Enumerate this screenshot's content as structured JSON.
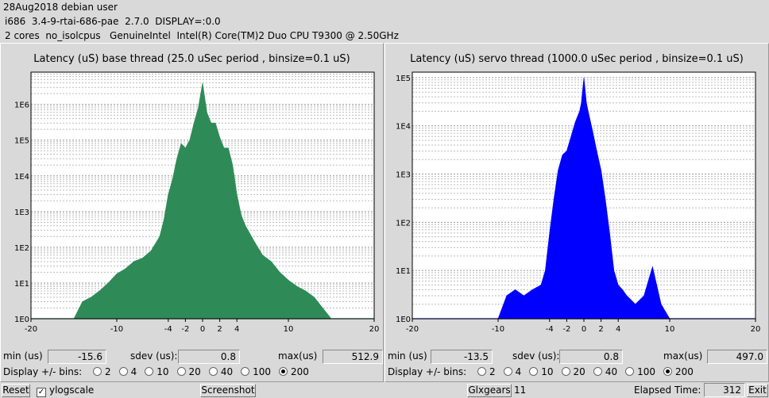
{
  "header": {
    "line1": "28Aug2018 debian user",
    "line2": "i686  3.4-9-rtai-686-pae  2.7.0  DISPLAY=:0.0",
    "line3": "2 cores  no_isolcpus   GenuineIntel  Intel(R) Core(TM)2 Duo CPU T9300 @ 2.50GHz"
  },
  "base": {
    "title": "Latency (uS) base thread (25.0 uSec period , binsize=0.1 uS)",
    "min_label": "min (us)",
    "min_value": "-15.6",
    "sdev_label": "sdev (us):",
    "sdev_value": "0.8",
    "max_label": "max(us)",
    "max_value": "512.9",
    "bins_label": "Display +/- bins:",
    "bin_options": [
      "2",
      "4",
      "10",
      "20",
      "40",
      "100",
      "200"
    ],
    "bin_selected": "200"
  },
  "servo": {
    "title": "Latency (uS) servo thread (1000.0 uSec period , binsize=0.1 uS)",
    "min_label": "min (us)",
    "min_value": "-13.5",
    "sdev_label": "sdev (us):",
    "sdev_value": "0.8",
    "max_label": "max(us)",
    "max_value": "497.0",
    "bins_label": "Display +/- bins:",
    "bin_options": [
      "2",
      "4",
      "10",
      "20",
      "40",
      "100",
      "200"
    ],
    "bin_selected": "200"
  },
  "footer": {
    "reset_label": "Reset",
    "ylog_label": "ylogscale",
    "ylog_checked": true,
    "screenshot_label": "Screenshot",
    "glxgears_label": "Glxgears",
    "glxgears_count": "11",
    "elapsed_label": "Elapsed Time:",
    "elapsed_value": "312",
    "exit_label": "Exit"
  },
  "colors": {
    "base_fill": "#2e8b57",
    "servo_fill": "#0000ff"
  },
  "chart_data": [
    {
      "type": "area",
      "name": "base",
      "title": "Latency (uS) base thread (25.0 uSec period , binsize=0.1 uS)",
      "y_scale": "log",
      "y_tick_labels": [
        "1E0",
        "1E1",
        "1E2",
        "1E3",
        "1E4",
        "1E5",
        "1E6"
      ],
      "x_tick_labels": [
        "-20",
        "-10",
        "-4",
        "-2",
        "0",
        "2",
        "4",
        "10",
        "20"
      ],
      "xlim": [
        -20,
        20
      ],
      "ylim": [
        1,
        8000000
      ],
      "x": [
        -20,
        -15,
        -14,
        -13,
        -12,
        -11,
        -10,
        -9,
        -8,
        -7,
        -6,
        -5,
        -4.5,
        -4,
        -3.5,
        -3,
        -2.5,
        -2,
        -1.5,
        -1,
        -0.5,
        0,
        0.5,
        1,
        1.5,
        2,
        2.5,
        3,
        3.5,
        4,
        4.5,
        5,
        6,
        7,
        8,
        9,
        10,
        11,
        12,
        13,
        14,
        15,
        20
      ],
      "values": [
        0,
        0,
        3,
        4,
        6,
        10,
        18,
        25,
        40,
        50,
        80,
        200,
        600,
        3000,
        8000,
        30000,
        80000,
        60000,
        100000,
        300000,
        800000,
        4000000,
        600000,
        300000,
        300000,
        120000,
        60000,
        60000,
        20000,
        3000,
        800,
        400,
        150,
        60,
        40,
        20,
        12,
        8,
        6,
        4,
        2,
        0,
        0
      ]
    },
    {
      "type": "area",
      "name": "servo",
      "title": "Latency (uS) servo thread (1000.0 uSec period , binsize=0.1 uS)",
      "y_scale": "log",
      "y_tick_labels": [
        "1E0",
        "1E1",
        "1E2",
        "1E3",
        "1E4",
        "1E5"
      ],
      "x_tick_labels": [
        "-20",
        "-10",
        "-4",
        "-2",
        "0",
        "2",
        "4",
        "10",
        "20"
      ],
      "xlim": [
        -20,
        20
      ],
      "ylim": [
        1,
        130000
      ],
      "x": [
        -20,
        -10,
        -9,
        -8,
        -7,
        -6,
        -5,
        -4.5,
        -4,
        -3.5,
        -3,
        -2.5,
        -2,
        -1.5,
        -1,
        -0.5,
        -0.3,
        0,
        0.3,
        0.5,
        1,
        1.5,
        2,
        2.5,
        3,
        3.5,
        4,
        4.5,
        5,
        6,
        7,
        8,
        9,
        10,
        20
      ],
      "values": [
        0,
        0,
        3,
        4,
        3,
        4,
        5,
        10,
        60,
        300,
        1200,
        2500,
        3000,
        6000,
        12000,
        20000,
        30000,
        100000,
        30000,
        20000,
        8000,
        3000,
        1200,
        300,
        60,
        10,
        5,
        4,
        3,
        2,
        3,
        12,
        2,
        0,
        0
      ]
    }
  ]
}
